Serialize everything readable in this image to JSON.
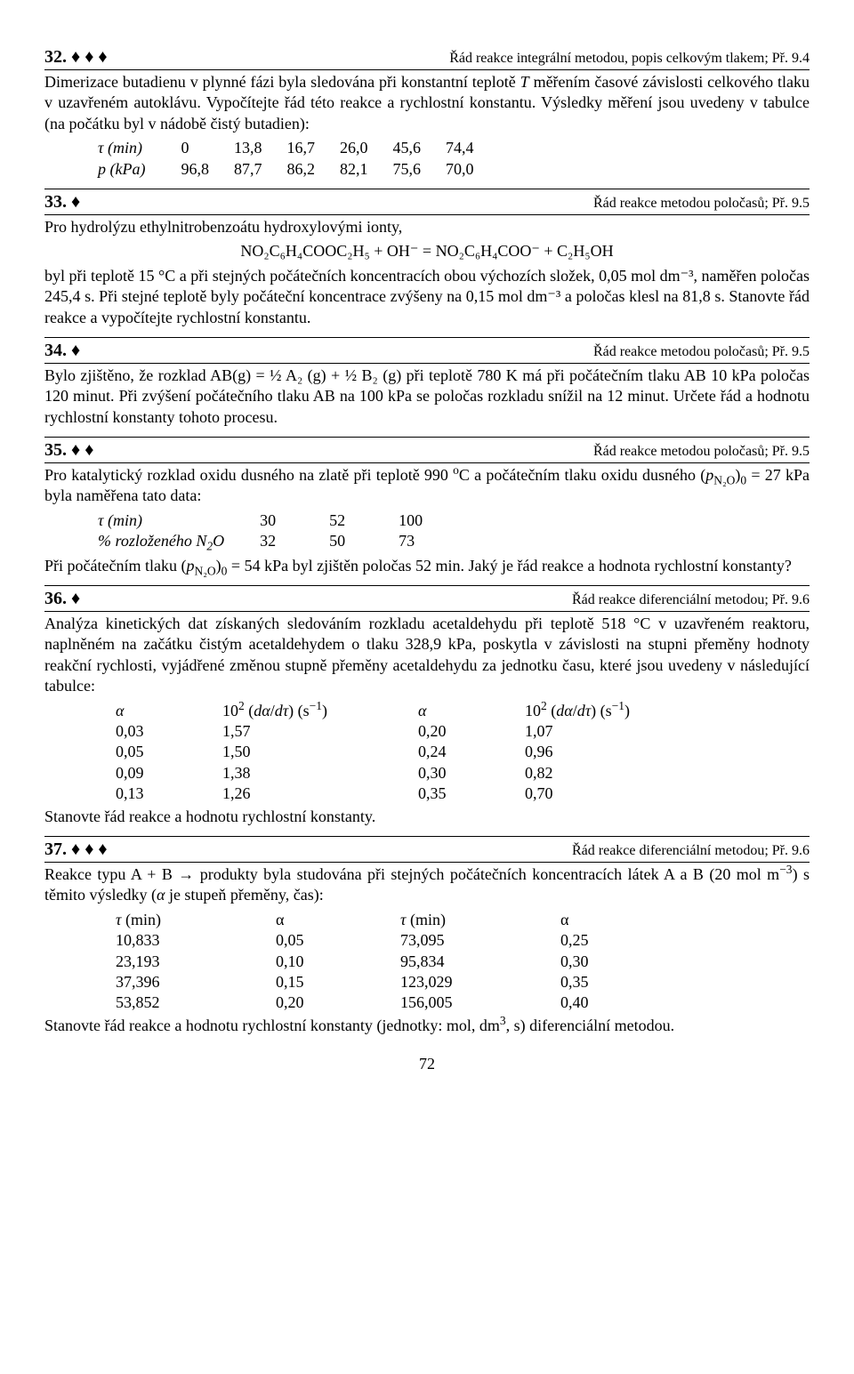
{
  "page_number": "72",
  "p32": {
    "num": "32. ♦ ♦ ♦",
    "ref": "Řád reakce integrální metodou, popis celkovým tlakem; Př. 9.4",
    "text": "Dimerizace butadienu v plynné fázi byla sledována při konstantní teplotě T měřením časové závislosti celkového tlaku v uzavřeném autoklávu. Vypočítejte řád této reakce a rychlostní konstantu. Výsledky měření jsou uvedeny v tabulce (na počátku byl v nádobě čistý butadien):",
    "row1_label": "τ (min)",
    "row1": [
      "0",
      "13,8",
      "16,7",
      "26,0",
      "45,6",
      "74,4"
    ],
    "row2_label": "p (kPa)",
    "row2": [
      "96,8",
      "87,7",
      "86,2",
      "82,1",
      "75,6",
      "70,0"
    ]
  },
  "p33": {
    "num": "33. ♦",
    "ref": "Řád reakce metodou poločasů; Př. 9.5",
    "text1": "Pro hydrolýzu ethylnitrobenzoátu hydroxylovými ionty,",
    "eq": "NO₂C₆H₄COOC₂H₅ + OH⁻ = NO₂C₆H₄COO⁻ + C₂H₅OH",
    "text2": "byl při teplotě 15 °C a při stejných počátečních koncentracích obou výchozích složek, 0,05 mol dm⁻³, naměřen poločas 245,4 s. Při stejné teplotě byly počáteční koncentrace zvýšeny na 0,15 mol dm⁻³ a poločas klesl na 81,8 s. Stanovte řád reakce a vypočítejte rychlostní konstantu."
  },
  "p34": {
    "num": "34. ♦",
    "ref": "Řád reakce metodou poločasů; Př. 9.5",
    "text": "Bylo zjištěno, že rozklad AB(g) = ½ A₂ (g) + ½ B₂ (g) při teplotě 780 K má při počátečním tlaku AB 10 kPa poločas 120 minut. Při zvýšení počátečního tlaku AB na 100 kPa se poločas rozkladu snížil na 12 minut. Určete řád a hodnotu rychlostní konstanty tohoto procesu."
  },
  "p35": {
    "num": "35. ♦ ♦",
    "ref": "Řád reakce metodou poločasů; Př. 9.5",
    "text1": "Pro katalytický rozklad oxidu dusného na zlatě při teplotě 990 °C a počátečním tlaku oxidu dusného  (p",
    "sub1": "N₂O",
    "text1b": ")₀ = 27 kPa byla naměřena tato data:",
    "row1_label": "τ (min)",
    "row1": [
      "30",
      "52",
      "100"
    ],
    "row2_label": "% rozloženého N₂O",
    "row2": [
      "32",
      "50",
      "73"
    ],
    "text2a": "Při počátečním tlaku (p",
    "text2b": ")₀ = 54 kPa byl zjištěn poločas 52 min. Jaký je řád reakce a hodnota rychlostní konstanty?"
  },
  "p36": {
    "num": "36. ♦",
    "ref": "Řád reakce diferenciální metodou; Př. 9.6",
    "text1": "Analýza kinetických dat získaných sledováním rozkladu acetaldehydu při teplotě 518 °C v uzavřeném reaktoru, naplněném na začátku čistým acetaldehydem o tlaku 328,9 kPa, poskytla v závislosti na stupni přeměny hodnoty reakční rychlosti, vyjádřené změnou stupně přeměny acetaldehydu za jednotku času, které jsou uvedeny v následující tabulce:",
    "h_alpha": "α",
    "h_rate": "10² (dα/dτ) (s⁻¹)",
    "rows": [
      [
        "0,03",
        "1,57",
        "0,20",
        "1,07"
      ],
      [
        "0,05",
        "1,50",
        "0,24",
        "0,96"
      ],
      [
        "0,09",
        "1,38",
        "0,30",
        "0,82"
      ],
      [
        "0,13",
        "1,26",
        "0,35",
        "0,70"
      ]
    ],
    "text2": "Stanovte řád reakce a hodnotu rychlostní konstanty."
  },
  "p37": {
    "num": "37. ♦ ♦ ♦",
    "ref": "Řád reakce diferenciální metodou; Př. 9.6",
    "text1": "Reakce typu  A + B → produkty  byla studována při stejných počátečních koncentracích látek A a B (20 mol m⁻³) s těmito výsledky (α je stupeň přeměny,  čas):",
    "h_tau": "τ (min)",
    "h_alpha": "α",
    "rows": [
      [
        "10,833",
        "0,05",
        "73,095",
        "0,25"
      ],
      [
        "23,193",
        "0,10",
        "95,834",
        "0,30"
      ],
      [
        "37,396",
        "0,15",
        "123,029",
        "0,35"
      ],
      [
        "53,852",
        "0,20",
        "156,005",
        "0,40"
      ]
    ],
    "text2": "Stanovte řád reakce a hodnotu rychlostní konstanty (jednotky: mol, dm³, s) diferenciální metodou."
  }
}
